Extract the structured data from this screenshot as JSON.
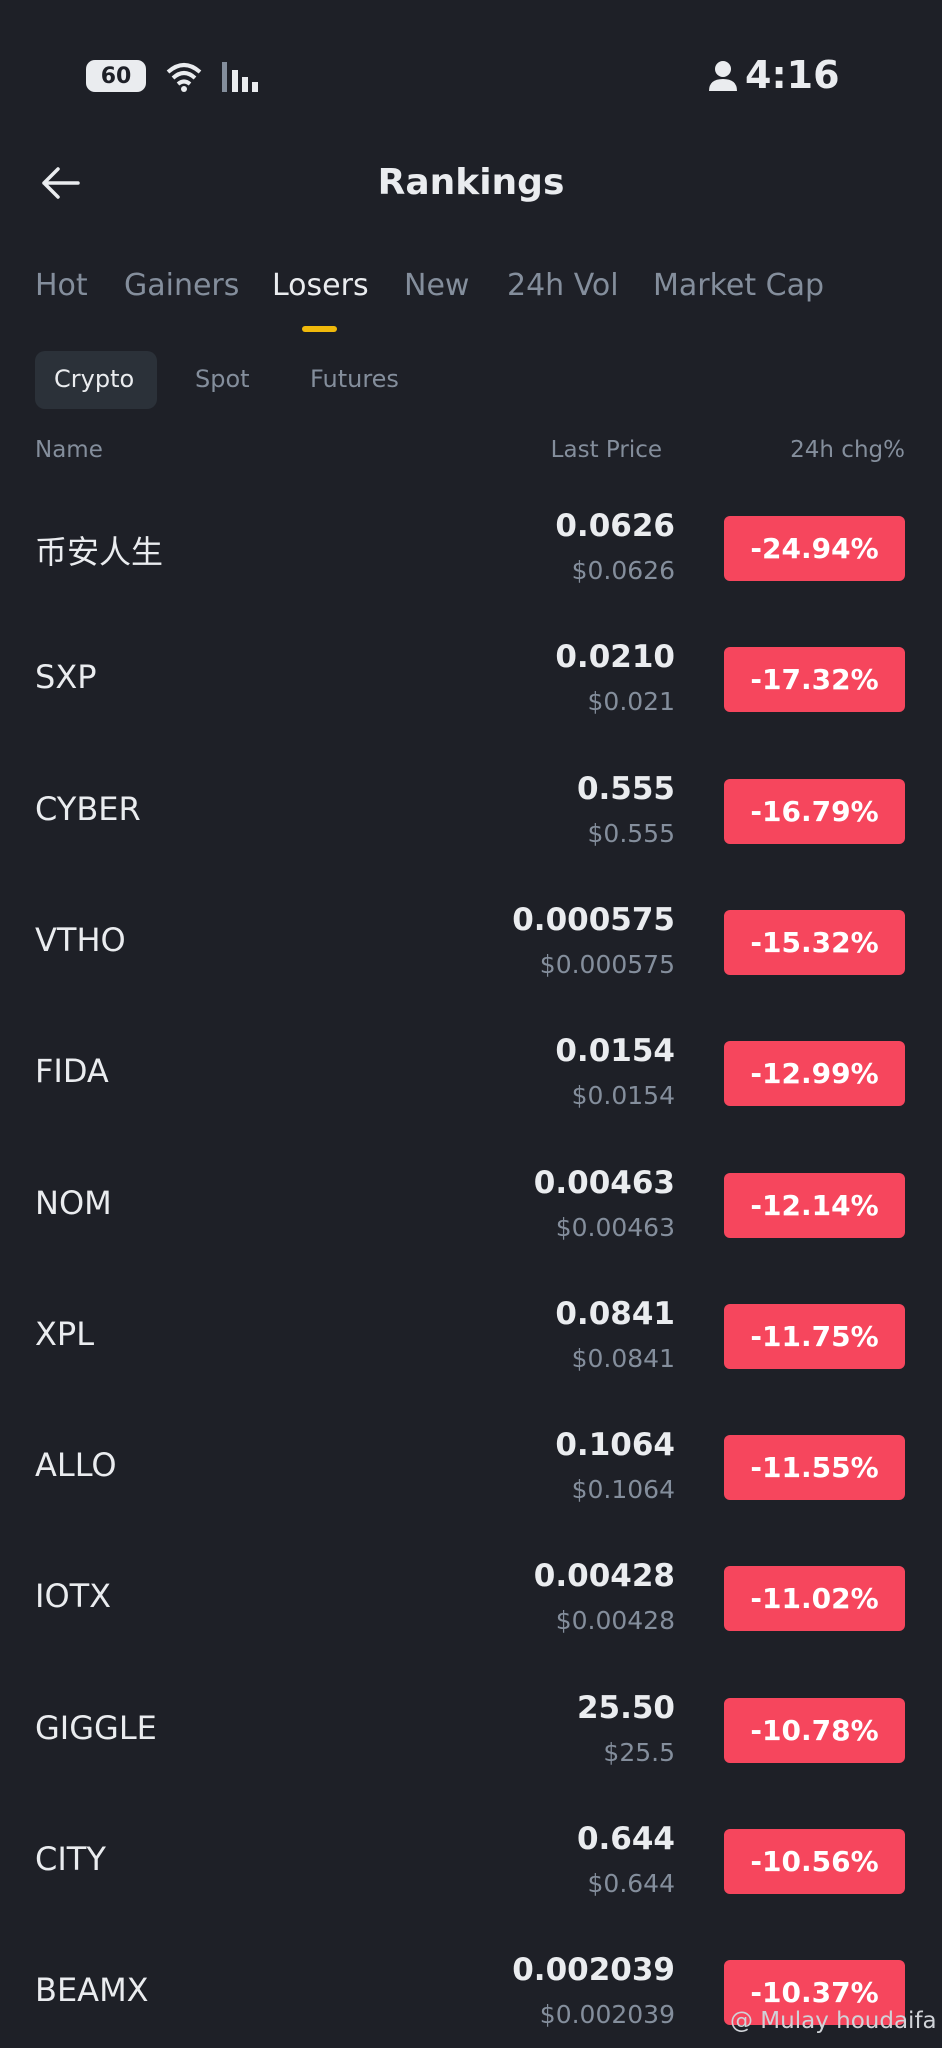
{
  "status_bar": {
    "battery": "60",
    "time": "4:16"
  },
  "header": {
    "title": "Rankings"
  },
  "tabs": [
    "Hot",
    "Gainers",
    "Losers",
    "New",
    "24h Vol",
    "Market Cap"
  ],
  "sub_tabs": [
    "Crypto",
    "Spot",
    "Futures"
  ],
  "columns": [
    "Name",
    "Last Price",
    "24h chg%"
  ],
  "rows": [
    {
      "name": "币安人生",
      "price": "0.0626",
      "usd_price": "$0.0626",
      "change": "-24.94%"
    },
    {
      "name": "SXP",
      "price": "0.0210",
      "usd_price": "$0.021",
      "change": "-17.32%"
    },
    {
      "name": "CYBER",
      "price": "0.555",
      "usd_price": "$0.555",
      "change": "-16.79%"
    },
    {
      "name": "VTHO",
      "price": "0.000575",
      "usd_price": "$0.000575",
      "change": "-15.32%"
    },
    {
      "name": "FIDA",
      "price": "0.0154",
      "usd_price": "$0.0154",
      "change": "-12.99%"
    },
    {
      "name": "NOM",
      "price": "0.00463",
      "usd_price": "$0.00463",
      "change": "-12.14%"
    },
    {
      "name": "XPL",
      "price": "0.0841",
      "usd_price": "$0.0841",
      "change": "-11.75%"
    },
    {
      "name": "ALLO",
      "price": "0.1064",
      "usd_price": "$0.1064",
      "change": "-11.55%"
    },
    {
      "name": "IOTX",
      "price": "0.00428",
      "usd_price": "$0.00428",
      "change": "-11.02%"
    },
    {
      "name": "GIGGLE",
      "price": "25.50",
      "usd_price": "$25.5",
      "change": "-10.78%"
    },
    {
      "name": "CITY",
      "price": "0.644",
      "usd_price": "$0.644",
      "change": "-10.56%"
    },
    {
      "name": "BEAMX",
      "price": "0.002039",
      "usd_price": "$0.002039",
      "change": "-10.37%"
    }
  ],
  "watermark": "@ Mulay houdaifa"
}
